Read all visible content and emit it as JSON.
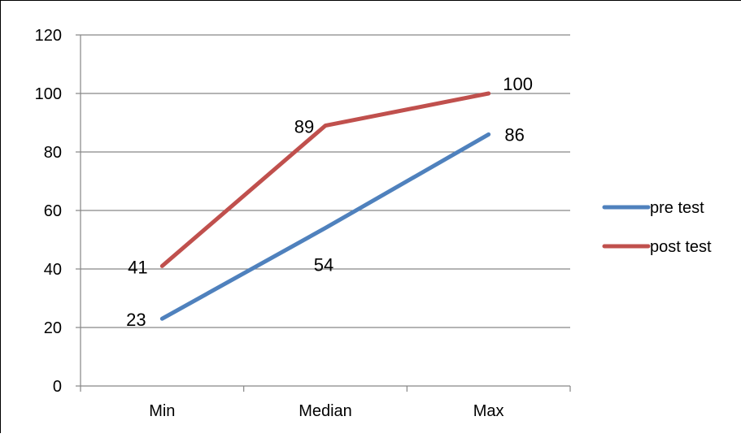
{
  "chart_data": {
    "type": "line",
    "categories": [
      "Min",
      "Median",
      "Max"
    ],
    "series": [
      {
        "name": "pre test",
        "values": [
          23,
          54,
          86
        ],
        "color": "#4f81bd"
      },
      {
        "name": "post test",
        "values": [
          41,
          89,
          100
        ],
        "color": "#c0504d"
      }
    ],
    "ylim": [
      0,
      120
    ],
    "yticks": [
      "0",
      "20",
      "40",
      "60",
      "80",
      "100",
      "120"
    ],
    "title": "",
    "xlabel": "",
    "ylabel": "",
    "grid": true,
    "gridline_color": "#868686",
    "legend_position": "right",
    "data_labels": true
  }
}
